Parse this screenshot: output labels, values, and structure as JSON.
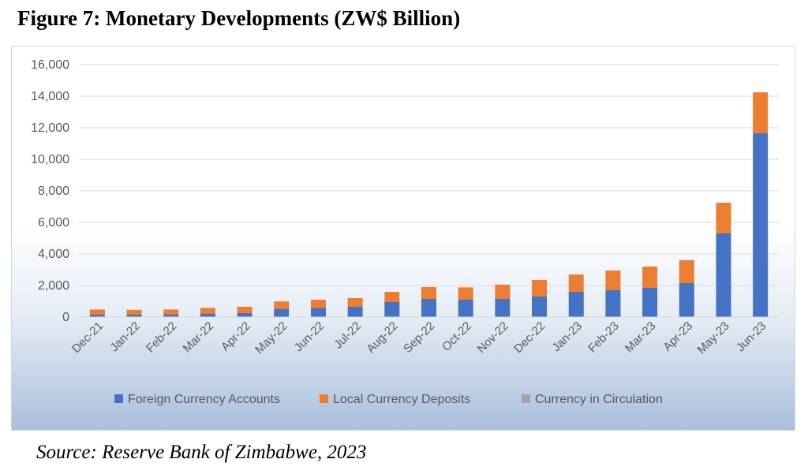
{
  "figure": {
    "title": "Figure 7: Monetary Developments (ZW$ Billion)",
    "source": "Source: Reserve Bank of Zimbabwe, 2023"
  },
  "chart_data": {
    "type": "bar",
    "stacked": true,
    "title": "",
    "xlabel": "",
    "ylabel": "",
    "ylim": [
      0,
      16000
    ],
    "yticks": [
      0,
      2000,
      4000,
      6000,
      8000,
      10000,
      12000,
      14000,
      16000
    ],
    "ytick_labels": [
      "0",
      "2,000",
      "4,000",
      "6,000",
      "8,000",
      "10,000",
      "12,000",
      "14,000",
      "16,000"
    ],
    "grid": true,
    "legend": "bottom",
    "categories": [
      "Dec-21",
      "Jan-22",
      "Feb-22",
      "Mar-22",
      "Apr-22",
      "May-22",
      "Jun-22",
      "Jul-22",
      "Aug-22",
      "Sep-22",
      "Oct-22",
      "Nov-22",
      "Dec-22",
      "Jan-23",
      "Feb-23",
      "Mar-23",
      "Apr-23",
      "May-23",
      "Jun-23"
    ],
    "series": [
      {
        "name": "Foreign Currency Accounts",
        "color": "#4472c4",
        "values": [
          150,
          150,
          170,
          220,
          250,
          520,
          580,
          650,
          950,
          1150,
          1100,
          1150,
          1300,
          1600,
          1700,
          1850,
          2150,
          5300,
          11650
        ]
      },
      {
        "name": "Local Currency Deposits",
        "color": "#ed7d31",
        "values": [
          330,
          310,
          310,
          360,
          400,
          470,
          520,
          550,
          650,
          750,
          780,
          900,
          1050,
          1100,
          1250,
          1350,
          1450,
          1950,
          2600
        ]
      },
      {
        "name": "Currency in Circulation",
        "color": "#a5a5a5",
        "values": [
          0,
          0,
          0,
          0,
          0,
          0,
          0,
          0,
          0,
          0,
          0,
          0,
          0,
          0,
          0,
          0,
          0,
          0,
          0
        ]
      }
    ]
  }
}
